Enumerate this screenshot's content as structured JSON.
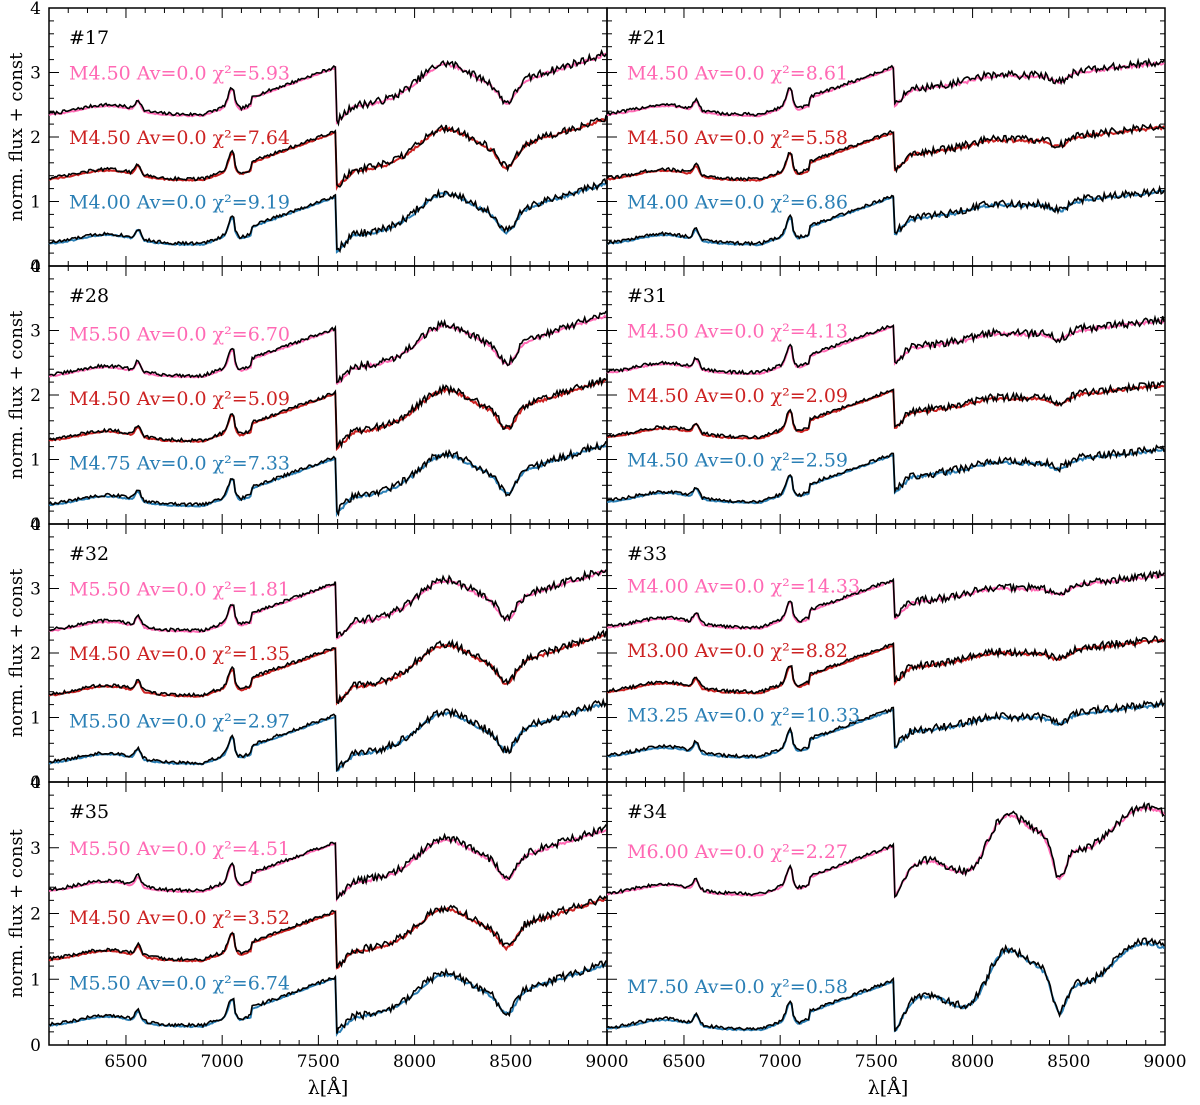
{
  "figure": {
    "ylabel": "norm. flux + const",
    "xlabel": "λ[Å]"
  },
  "colors": {
    "observed": "#000000",
    "top_model": "#ff69b4",
    "middle_model": "#cc2222",
    "bottom_model": "#2a7fb5"
  },
  "chart_data": [
    {
      "type": "line",
      "panel": "#17",
      "xlim": [
        6100,
        9000
      ],
      "ylim": [
        0,
        4
      ],
      "x_ticks": [
        "6500",
        "7000",
        "7500",
        "8000",
        "8500",
        "9000"
      ],
      "y_ticks": [
        "0",
        "1",
        "2",
        "3",
        "4"
      ],
      "labels": [
        {
          "series": "top",
          "text": "M4.50 Av=0.0 χ²=5.93"
        },
        {
          "series": "middle",
          "text": "M4.50 Av=0.0 χ²=7.64"
        },
        {
          "series": "bottom",
          "text": "M4.00 Av=0.0 χ²=9.19"
        }
      ],
      "offsets": [
        2.1,
        1.1,
        0.1
      ],
      "shape": "mid"
    },
    {
      "type": "line",
      "panel": "#21",
      "xlim": [
        6100,
        9000
      ],
      "ylim": [
        0,
        4
      ],
      "x_ticks": [
        "6500",
        "7000",
        "7500",
        "8000",
        "8500",
        "9000"
      ],
      "y_ticks": [
        "0",
        "1",
        "2",
        "3",
        "4"
      ],
      "labels": [
        {
          "series": "top",
          "text": "M4.50 Av=0.0 χ²=8.61"
        },
        {
          "series": "middle",
          "text": "M4.50 Av=0.0 χ²=5.58"
        },
        {
          "series": "bottom",
          "text": "M4.00 Av=0.0 χ²=6.86"
        }
      ],
      "offsets": [
        2.1,
        1.1,
        0.1
      ],
      "shape": "flat"
    },
    {
      "type": "line",
      "panel": "#28",
      "xlim": [
        6100,
        9000
      ],
      "ylim": [
        0,
        4
      ],
      "x_ticks": [
        "6500",
        "7000",
        "7500",
        "8000",
        "8500",
        "9000"
      ],
      "y_ticks": [
        "0",
        "1",
        "2",
        "3",
        "4"
      ],
      "labels": [
        {
          "series": "top",
          "text": "M5.50 Av=0.0 χ²=6.70"
        },
        {
          "series": "middle",
          "text": "M4.50 Av=0.0 χ²=5.09"
        },
        {
          "series": "bottom",
          "text": "M4.75 Av=0.0 χ²=7.33"
        }
      ],
      "offsets": [
        2.05,
        1.05,
        0.05
      ],
      "shape": "mid"
    },
    {
      "type": "line",
      "panel": "#31",
      "xlim": [
        6100,
        9000
      ],
      "ylim": [
        0,
        4
      ],
      "x_ticks": [
        "6500",
        "7000",
        "7500",
        "8000",
        "8500",
        "9000"
      ],
      "y_ticks": [
        "0",
        "1",
        "2",
        "3",
        "4"
      ],
      "labels": [
        {
          "series": "top",
          "text": "M4.50 Av=0.0 χ²=4.13"
        },
        {
          "series": "middle",
          "text": "M4.50 Av=0.0 χ²=2.09"
        },
        {
          "series": "bottom",
          "text": "M4.50 Av=0.0 χ²=2.59"
        }
      ],
      "offsets": [
        2.1,
        1.1,
        0.1
      ],
      "shape": "flat"
    },
    {
      "type": "line",
      "panel": "#32",
      "xlim": [
        6100,
        9000
      ],
      "ylim": [
        0,
        4
      ],
      "x_ticks": [
        "6500",
        "7000",
        "7500",
        "8000",
        "8500",
        "9000"
      ],
      "y_ticks": [
        "0",
        "1",
        "2",
        "3",
        "4"
      ],
      "labels": [
        {
          "series": "top",
          "text": "M5.50 Av=0.0 χ²=1.81"
        },
        {
          "series": "middle",
          "text": "M4.50 Av=0.0 χ²=1.35"
        },
        {
          "series": "bottom",
          "text": "M5.50 Av=0.0 χ²=2.97"
        }
      ],
      "offsets": [
        2.1,
        1.1,
        0.05
      ],
      "shape": "mid"
    },
    {
      "type": "line",
      "panel": "#33",
      "xlim": [
        6100,
        9000
      ],
      "ylim": [
        0,
        4
      ],
      "x_ticks": [
        "6500",
        "7000",
        "7500",
        "8000",
        "8500",
        "9000"
      ],
      "y_ticks": [
        "0",
        "1",
        "2",
        "3",
        "4"
      ],
      "labels": [
        {
          "series": "top",
          "text": "M4.00 Av=0.0 χ²=14.33"
        },
        {
          "series": "middle",
          "text": "M3.00 Av=0.0 χ²=8.82"
        },
        {
          "series": "bottom",
          "text": "M3.25 Av=0.0 χ²=10.33"
        }
      ],
      "offsets": [
        2.15,
        1.15,
        0.15
      ],
      "shape": "flat"
    },
    {
      "type": "line",
      "panel": "#35",
      "xlim": [
        6100,
        9000
      ],
      "ylim": [
        0,
        4
      ],
      "x_ticks": [
        "6500",
        "7000",
        "7500",
        "8000",
        "8500",
        "9000"
      ],
      "y_ticks": [
        "0",
        "1",
        "2",
        "3",
        "4"
      ],
      "labels": [
        {
          "series": "top",
          "text": "M5.50 Av=0.0 χ²=4.51"
        },
        {
          "series": "middle",
          "text": "M4.50 Av=0.0 χ²=3.52"
        },
        {
          "series": "bottom",
          "text": "M5.50 Av=0.0 χ²=6.74"
        }
      ],
      "offsets": [
        2.1,
        1.05,
        0.05
      ],
      "shape": "mid"
    },
    {
      "type": "line",
      "panel": "#34",
      "xlim": [
        6100,
        9000
      ],
      "ylim": [
        0,
        4
      ],
      "x_ticks": [
        "6500",
        "7000",
        "7500",
        "8000",
        "8500",
        "9000"
      ],
      "y_ticks": [
        "0",
        "1",
        "2",
        "3",
        "4"
      ],
      "labels": [
        {
          "series": "top",
          "text": "M6.00 Av=0.0 χ²=2.27"
        },
        {
          "series": "bottom",
          "text": "M7.50 Av=0.0 χ²=0.58"
        }
      ],
      "offsets": [
        2.05,
        0.0
      ],
      "shape": "late"
    }
  ]
}
